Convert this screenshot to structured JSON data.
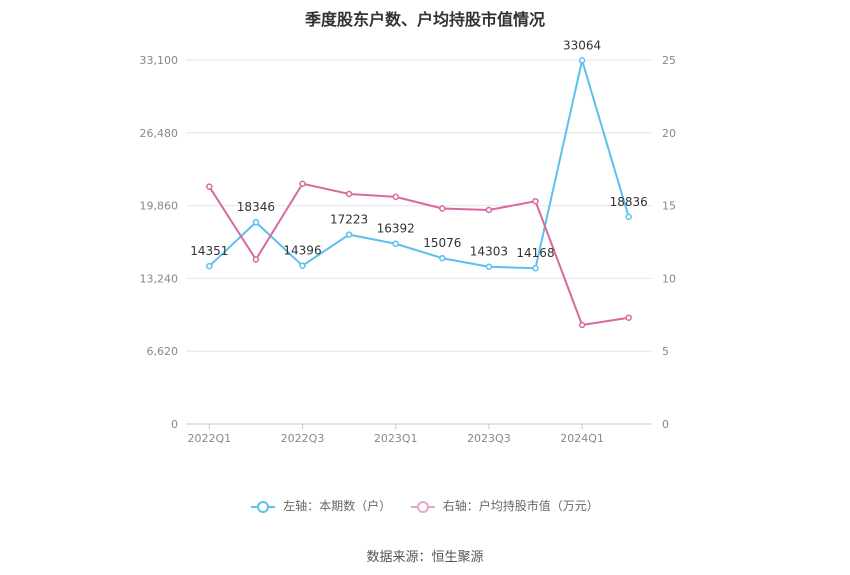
{
  "chart_data": {
    "type": "line",
    "title": "季度股东户数、户均持股市值情况",
    "categories": [
      "2022Q1",
      "2022Q2",
      "2022Q3",
      "2022Q4",
      "2023Q1",
      "2023Q2",
      "2023Q3",
      "2023Q4",
      "2024Q1",
      "2024Q2"
    ],
    "x_tick_labels": [
      "2022Q1",
      "",
      "2022Q3",
      "",
      "2023Q1",
      "",
      "2023Q3",
      "",
      "2024Q1",
      ""
    ],
    "left_axis": {
      "ylim": [
        0,
        33100
      ],
      "ticks": [
        0,
        6620,
        13240,
        19860,
        26480,
        33100
      ],
      "tick_labels": [
        "0",
        "6,620",
        "13,240",
        "19,860",
        "26,480",
        "33,100"
      ]
    },
    "right_axis": {
      "ylim": [
        0,
        25
      ],
      "ticks": [
        0,
        5,
        10,
        15,
        20,
        25
      ],
      "tick_labels": [
        "0",
        "5",
        "10",
        "15",
        "20",
        "25"
      ]
    },
    "series": [
      {
        "name": "左轴：本期数（户）",
        "axis": "left",
        "color": "#5bc0f0",
        "values": [
          14351,
          18346,
          14396,
          17223,
          16392,
          15076,
          14303,
          14168,
          33064,
          18836
        ],
        "labels": [
          "14351",
          "18346",
          "14396",
          "17223",
          "16392",
          "15076",
          "14303",
          "14168",
          "33064",
          "18836"
        ]
      },
      {
        "name": "右轴：户均持股市值（万元）",
        "axis": "right",
        "color": "#d9689f",
        "values": [
          16.3,
          11.3,
          16.5,
          15.8,
          15.6,
          14.8,
          14.7,
          15.3,
          6.8,
          7.3
        ]
      }
    ],
    "grid": true,
    "legend_position": "bottom"
  },
  "source": "数据来源：恒生聚源"
}
